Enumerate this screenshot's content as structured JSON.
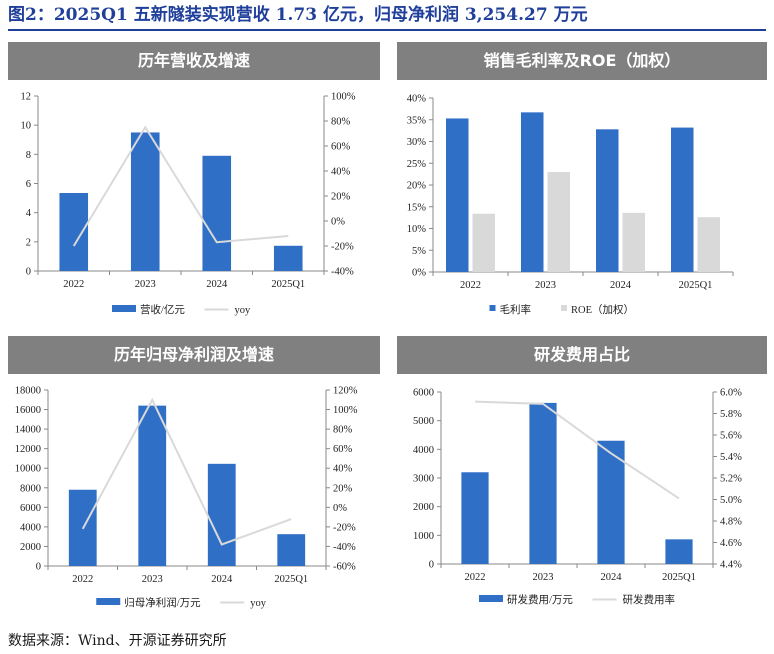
{
  "figure_title": "图2：2025Q1 五新隧装实现营收 1.73 亿元，归母净利润 3,254.27 万元",
  "source": "数据来源：Wind、开源证券研究所",
  "colors": {
    "bar": "#2f6fc6",
    "bar_secondary": "#d9d9d9",
    "line": "#d9d9d9",
    "header": "#808080",
    "title": "#1f3f9a"
  },
  "chart_data": [
    {
      "type": "bar",
      "panel_title": "历年营收及增速",
      "categories": [
        "2022",
        "2023",
        "2024",
        "2025Q1"
      ],
      "series": [
        {
          "name": "营收/亿元",
          "kind": "bar",
          "axis": "left",
          "values": [
            5.35,
            9.5,
            7.9,
            1.73
          ]
        },
        {
          "name": "yoy",
          "kind": "line",
          "axis": "right",
          "values": [
            -20,
            75,
            -17,
            -12
          ]
        }
      ],
      "left_axis": {
        "min": 0,
        "max": 12,
        "step": 2,
        "tick_labels": [
          "0",
          "2",
          "4",
          "6",
          "8",
          "10",
          "12"
        ]
      },
      "right_axis": {
        "min": -40,
        "max": 100,
        "step": 20,
        "tick_labels": [
          "-40%",
          "-20%",
          "0%",
          "20%",
          "40%",
          "60%",
          "80%",
          "100%"
        ]
      }
    },
    {
      "type": "bar",
      "panel_title": "销售毛利率及ROE（加权）",
      "categories": [
        "2022",
        "2023",
        "2024",
        "2025Q1"
      ],
      "series": [
        {
          "name": "毛利率",
          "kind": "bar",
          "axis": "left",
          "values": [
            35.3,
            36.7,
            32.8,
            33.2
          ]
        },
        {
          "name": "ROE（加权）",
          "kind": "bar2",
          "axis": "left",
          "values": [
            13.4,
            23.0,
            13.6,
            12.6
          ]
        }
      ],
      "left_axis": {
        "min": 0,
        "max": 40,
        "step": 5,
        "tick_labels": [
          "0%",
          "5%",
          "10%",
          "15%",
          "20%",
          "25%",
          "30%",
          "35%",
          "40%"
        ]
      }
    },
    {
      "type": "bar",
      "panel_title": "历年归母净利润及增速",
      "categories": [
        "2022",
        "2023",
        "2024",
        "2025Q1"
      ],
      "series": [
        {
          "name": "归母净利润/万元",
          "kind": "bar",
          "axis": "left",
          "values": [
            7800,
            16400,
            10450,
            3254.27
          ]
        },
        {
          "name": "yoy",
          "kind": "line",
          "axis": "right",
          "values": [
            -22,
            110,
            -38,
            -12
          ]
        }
      ],
      "left_axis": {
        "min": 0,
        "max": 18000,
        "step": 2000,
        "tick_labels": [
          "0",
          "2000",
          "4000",
          "6000",
          "8000",
          "10000",
          "12000",
          "14000",
          "16000",
          "18000"
        ]
      },
      "right_axis": {
        "min": -60,
        "max": 120,
        "step": 20,
        "tick_labels": [
          "-60%",
          "-40%",
          "-20%",
          "0%",
          "20%",
          "40%",
          "60%",
          "80%",
          "100%",
          "120%"
        ]
      }
    },
    {
      "type": "bar",
      "panel_title": "研发费用占比",
      "categories": [
        "2022",
        "2023",
        "2024",
        "2025Q1"
      ],
      "series": [
        {
          "name": "研发费用/万元",
          "kind": "bar",
          "axis": "left",
          "values": [
            3200,
            5620,
            4300,
            860
          ]
        },
        {
          "name": "研发费用率",
          "kind": "line",
          "axis": "right",
          "values": [
            5.91,
            5.89,
            5.43,
            5.01
          ]
        }
      ],
      "left_axis": {
        "min": 0,
        "max": 6000,
        "step": 1000,
        "tick_labels": [
          "0",
          "1000",
          "2000",
          "3000",
          "4000",
          "5000",
          "6000"
        ]
      },
      "right_axis": {
        "min": 4.4,
        "max": 6.0,
        "step": 0.2,
        "tick_labels": [
          "4.4%",
          "4.6%",
          "4.8%",
          "5.0%",
          "5.2%",
          "5.4%",
          "5.6%",
          "5.8%",
          "6.0%"
        ]
      }
    }
  ]
}
